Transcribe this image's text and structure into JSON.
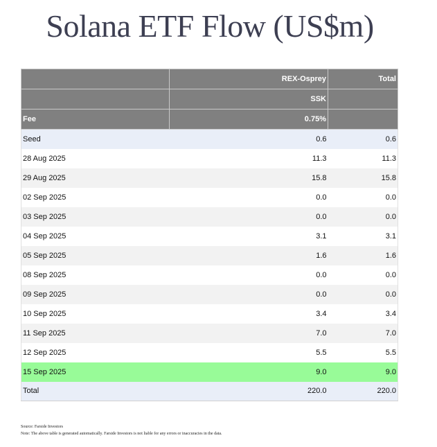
{
  "title": "Solana ETF Flow (US$m)",
  "table": {
    "header": {
      "row1": [
        "",
        "REX-Osprey",
        "Total"
      ],
      "row2": [
        "",
        "SSK",
        ""
      ],
      "row3": [
        "Fee",
        "0.75%",
        ""
      ]
    },
    "rows": [
      {
        "label": "Seed",
        "value": "0.6",
        "total": "0.6"
      },
      {
        "label": "28 Aug 2025",
        "value": "11.3",
        "total": "11.3"
      },
      {
        "label": "29 Aug 2025",
        "value": "15.8",
        "total": "15.8"
      },
      {
        "label": "02 Sep 2025",
        "value": "0.0",
        "total": "0.0"
      },
      {
        "label": "03 Sep 2025",
        "value": "0.0",
        "total": "0.0"
      },
      {
        "label": "04 Sep 2025",
        "value": "3.1",
        "total": "3.1"
      },
      {
        "label": "05 Sep 2025",
        "value": "1.6",
        "total": "1.6"
      },
      {
        "label": "08 Sep 2025",
        "value": "0.0",
        "total": "0.0"
      },
      {
        "label": "09 Sep 2025",
        "value": "0.0",
        "total": "0.0"
      },
      {
        "label": "10 Sep 2025",
        "value": "3.4",
        "total": "3.4"
      },
      {
        "label": "11 Sep 2025",
        "value": "7.0",
        "total": "7.0"
      },
      {
        "label": "12 Sep 2025",
        "value": "5.5",
        "total": "5.5"
      },
      {
        "label": "15 Sep 2025",
        "value": "9.0",
        "total": "9.0"
      }
    ],
    "total_row": {
      "label": "Total",
      "value": "220.0",
      "total": "220.0"
    }
  },
  "colors": {
    "header_bg": "#808080",
    "highlight": "#98fb98",
    "seed_total_bg": "#e9eef8"
  },
  "footer": {
    "source": "Source: Farside Investors",
    "note": "Note: The above table is generated automatically. Farside Investors is not liable for any errors or inaccuracies in the data."
  }
}
